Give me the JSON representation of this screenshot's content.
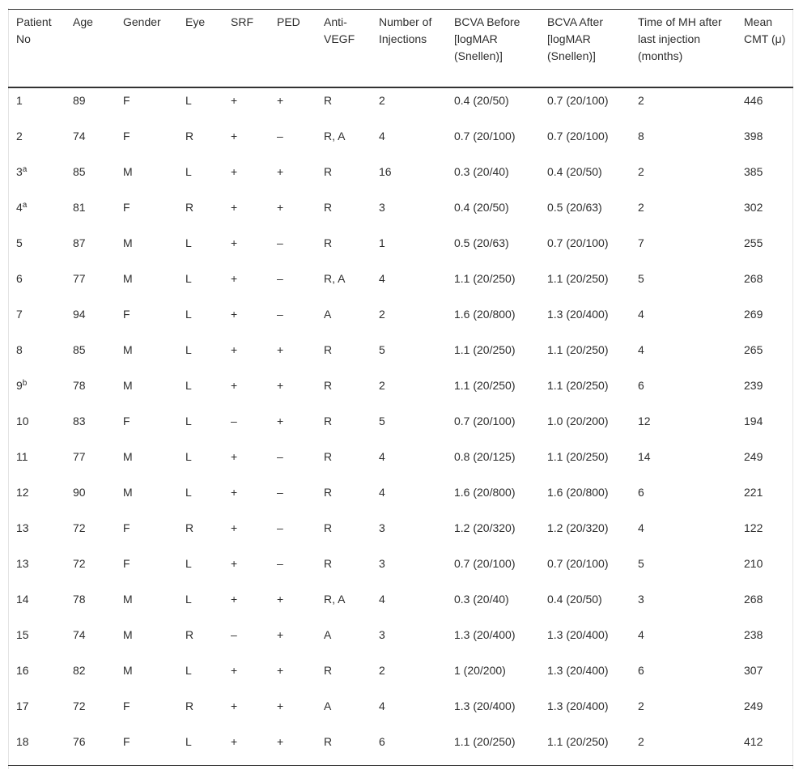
{
  "table": {
    "header": [
      "Patient No",
      "Age",
      "Gender",
      "Eye",
      "SRF",
      "PED",
      "Anti-VEGF",
      "Number of Injections",
      "BCVA Before [logMAR (Snellen)]",
      "BCVA After [logMAR (Snellen)]",
      "Time of MH after last injection (months)",
      "Mean CMT (μ)"
    ],
    "rows": [
      [
        "1",
        "89",
        "F",
        "L",
        "+",
        "+",
        "R",
        "2",
        "0.4 (20/50)",
        "0.7 (20/100)",
        "2",
        "446"
      ],
      [
        "2",
        "74",
        "F",
        "R",
        "+",
        "–",
        "R, A",
        "4",
        "0.7 (20/100)",
        "0.7 (20/100)",
        "8",
        "398"
      ],
      [
        {
          "text": "3",
          "sup": "a"
        },
        "85",
        "M",
        "L",
        "+",
        "+",
        "R",
        "16",
        "0.3 (20/40)",
        "0.4 (20/50)",
        "2",
        "385"
      ],
      [
        {
          "text": "4",
          "sup": "a"
        },
        "81",
        "F",
        "R",
        "+",
        "+",
        "R",
        "3",
        "0.4 (20/50)",
        "0.5 (20/63)",
        "2",
        "302"
      ],
      [
        "5",
        "87",
        "M",
        "L",
        "+",
        "–",
        "R",
        "1",
        "0.5 (20/63)",
        "0.7 (20/100)",
        "7",
        "255"
      ],
      [
        "6",
        "77",
        "M",
        "L",
        "+",
        "–",
        "R, A",
        "4",
        "1.1 (20/250)",
        "1.1 (20/250)",
        "5",
        "268"
      ],
      [
        "7",
        "94",
        "F",
        "L",
        "+",
        "–",
        "A",
        "2",
        "1.6 (20/800)",
        "1.3 (20/400)",
        "4",
        "269"
      ],
      [
        "8",
        "85",
        "M",
        "L",
        "+",
        "+",
        "R",
        "5",
        "1.1 (20/250)",
        "1.1 (20/250)",
        "4",
        "265"
      ],
      [
        {
          "text": "9",
          "sup": "b"
        },
        "78",
        "M",
        "L",
        "+",
        "+",
        "R",
        "2",
        "1.1 (20/250)",
        "1.1 (20/250)",
        "6",
        "239"
      ],
      [
        "10",
        "83",
        "F",
        "L",
        "–",
        "+",
        "R",
        "5",
        "0.7 (20/100)",
        "1.0 (20/200)",
        "12",
        "194"
      ],
      [
        "11",
        "77",
        "M",
        "L",
        "+",
        "–",
        "R",
        "4",
        "0.8 (20/125)",
        "1.1 (20/250)",
        "14",
        "249"
      ],
      [
        "12",
        "90",
        "M",
        "L",
        "+",
        "–",
        "R",
        "4",
        "1.6 (20/800)",
        "1.6 (20/800)",
        "6",
        "221"
      ],
      [
        "13",
        "72",
        "F",
        "R",
        "+",
        "–",
        "R",
        "3",
        "1.2 (20/320)",
        "1.2 (20/320)",
        "4",
        "122"
      ],
      [
        "13",
        "72",
        "F",
        "L",
        "+",
        "–",
        "R",
        "3",
        "0.7 (20/100)",
        "0.7 (20/100)",
        "5",
        "210"
      ],
      [
        "14",
        "78",
        "M",
        "L",
        "+",
        "+",
        "R, A",
        "4",
        "0.3 (20/40)",
        "0.4 (20/50)",
        "3",
        "268"
      ],
      [
        "15",
        "74",
        "M",
        "R",
        "–",
        "+",
        "A",
        "3",
        "1.3 (20/400)",
        "1.3 (20/400)",
        "4",
        "238"
      ],
      [
        "16",
        "82",
        "M",
        "L",
        "+",
        "+",
        "R",
        "2",
        "1 (20/200)",
        "1.3 (20/400)",
        "6",
        "307"
      ],
      [
        "17",
        "72",
        "F",
        "R",
        "+",
        "+",
        "A",
        "4",
        "1.3 (20/400)",
        "1.3 (20/400)",
        "2",
        "249"
      ],
      [
        "18",
        "76",
        "F",
        "L",
        "+",
        "+",
        "R",
        "6",
        "1.1 (20/250)",
        "1.1 (20/250)",
        "2",
        "412"
      ]
    ]
  }
}
